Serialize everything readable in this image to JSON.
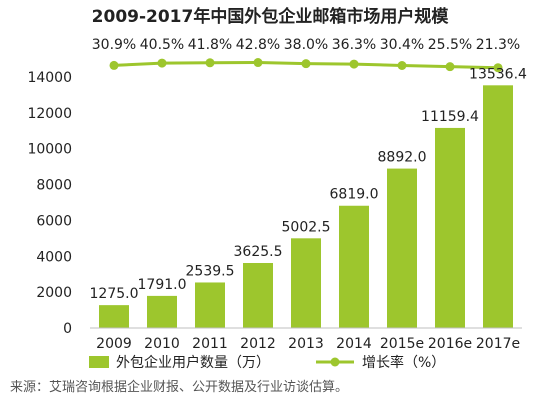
{
  "chart_data": {
    "type": "bar",
    "title": "2009-2017年中国外包企业邮箱市场用户规模",
    "categories": [
      "2009",
      "2010",
      "2011",
      "2012",
      "2013",
      "2014",
      "2015e",
      "2016e",
      "2017e"
    ],
    "series": [
      {
        "name": "外包企业用户数量（万）",
        "type": "bar",
        "values": [
          1275.0,
          1791.0,
          2539.5,
          3625.5,
          5002.5,
          6819.0,
          8892.0,
          11159.4,
          13536.4
        ],
        "labels": [
          "1275.0",
          "1791.0",
          "2539.5",
          "3625.5",
          "5002.5",
          "6819.0",
          "8892.0",
          "11159.4",
          "13536.4"
        ]
      },
      {
        "name": "增长率（%）",
        "type": "line",
        "values": [
          30.9,
          40.5,
          41.8,
          42.8,
          38.0,
          36.3,
          30.4,
          25.5,
          21.3
        ],
        "labels": [
          "30.9%",
          "40.5%",
          "41.8%",
          "42.8%",
          "38.0%",
          "36.3%",
          "30.4%",
          "25.5%",
          "21.3%"
        ]
      }
    ],
    "ylim": [
      0,
      14000
    ],
    "yticks": [
      "0",
      "2000",
      "4000",
      "6000",
      "8000",
      "10000",
      "12000",
      "14000"
    ],
    "legend_position": "bottom",
    "bar_color": "#9dc62d",
    "line_color": "#9dc62d",
    "source": "来源：艾瑞咨询根据企业财报、公开数据及行业访谈估算。"
  }
}
